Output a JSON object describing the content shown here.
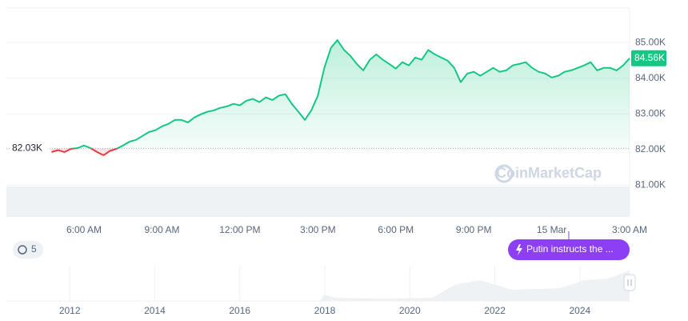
{
  "chart_data": {
    "type": "line",
    "categories": [
      null,
      null,
      null,
      null,
      null,
      null,
      null,
      null,
      null,
      null,
      null,
      null,
      "6:00 AM",
      null,
      null,
      null,
      null,
      null,
      null,
      null,
      null,
      null,
      null,
      null,
      "9:00 AM",
      null,
      null,
      null,
      null,
      null,
      null,
      null,
      null,
      null,
      null,
      null,
      "12:00 PM",
      null,
      null,
      null,
      null,
      null,
      null,
      null,
      null,
      null,
      null,
      null,
      "3:00 PM",
      null,
      null,
      null,
      null,
      null,
      null,
      null,
      null,
      null,
      null,
      null,
      "6:00 PM",
      null,
      null,
      null,
      null,
      null,
      null,
      null,
      null,
      null,
      null,
      null,
      "9:00 PM",
      null,
      null,
      null,
      null,
      null,
      null,
      null,
      null,
      null,
      null,
      null,
      "15 Mar",
      null,
      null,
      null,
      null,
      null,
      null,
      null,
      null,
      null,
      null,
      null,
      "3:00 AM"
    ],
    "series": [
      {
        "color": "#16c784",
        "below_color": "#ea3943",
        "values": [
          null,
          null,
          null,
          null,
          null,
          null,
          null,
          81.93,
          81.98,
          81.93,
          82.02,
          82.04,
          82.11,
          82.04,
          81.93,
          81.84,
          81.96,
          82.02,
          82.11,
          82.22,
          82.27,
          82.38,
          82.49,
          82.54,
          82.65,
          82.72,
          82.83,
          82.83,
          82.76,
          82.9,
          82.99,
          83.06,
          83.1,
          83.17,
          83.21,
          83.28,
          83.24,
          83.37,
          83.42,
          83.33,
          83.46,
          83.39,
          83.51,
          83.55,
          83.28,
          83.06,
          82.83,
          83.1,
          83.51,
          84.29,
          84.85,
          85.07,
          84.8,
          84.63,
          84.4,
          84.22,
          84.52,
          84.67,
          84.52,
          84.4,
          84.27,
          84.45,
          84.36,
          84.58,
          84.52,
          84.79,
          84.67,
          84.58,
          84.49,
          84.29,
          83.89,
          84.13,
          84.18,
          84.07,
          84.18,
          84.29,
          84.18,
          84.22,
          84.36,
          84.4,
          84.45,
          84.29,
          84.18,
          84.13,
          84.02,
          84.07,
          84.18,
          84.22,
          84.29,
          84.36,
          84.45,
          84.22,
          84.29,
          84.29,
          84.22,
          84.36,
          84.56
        ]
      }
    ],
    "ylim": [
      80.13,
      85.97
    ],
    "yticks": [
      {
        "value": 81,
        "label": "81.00K"
      },
      {
        "value": 82,
        "label": "82.00K"
      },
      {
        "value": 83,
        "label": "83.00K"
      },
      {
        "value": 84,
        "label": "84.00K"
      },
      {
        "value": 85,
        "label": "85.00K"
      }
    ],
    "grid": true,
    "baseline": {
      "value": 82.03,
      "label": "82.03K"
    },
    "last_price": {
      "value": 84.56,
      "label": "84.56K"
    },
    "watermark": "CoinMarketCap",
    "event": "Putin instructs the ...",
    "history_count": "5",
    "navigator": {
      "xlim": [
        2010.51,
        2025.17
      ],
      "xticks": [
        2012,
        2014,
        2016,
        2018,
        2020,
        2022,
        2024
      ]
    }
  }
}
